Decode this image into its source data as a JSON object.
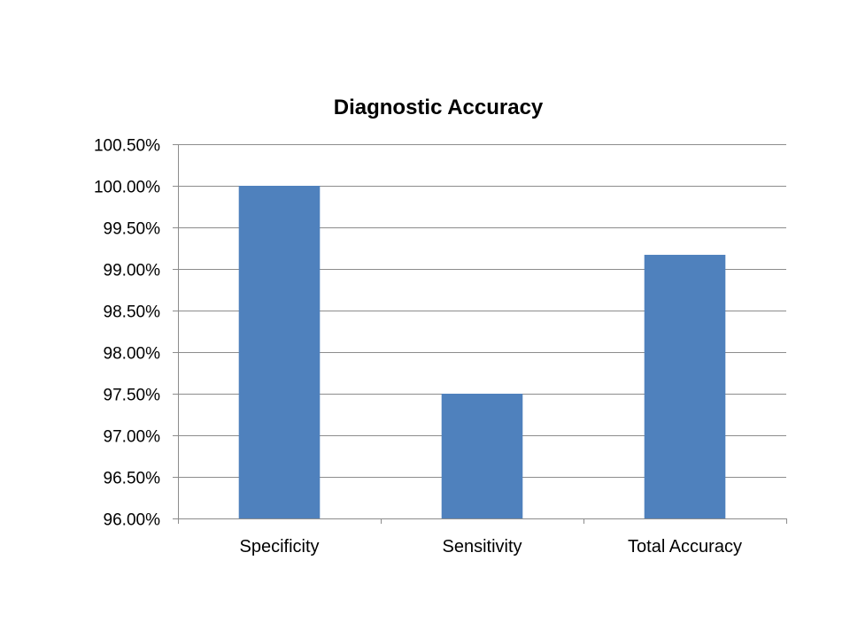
{
  "chart_data": {
    "type": "bar",
    "title": "Diagnostic Accuracy",
    "xlabel": "",
    "ylabel": "",
    "categories": [
      "Specificity",
      "Sensitivity",
      "Total Accuracy"
    ],
    "series": [
      {
        "values": [
          100.0,
          97.5,
          99.17
        ]
      }
    ],
    "ylim": [
      96.0,
      100.5
    ],
    "ytick_step": 0.5,
    "yticks": [
      "100.50%",
      "100.00%",
      "99.50%",
      "99.00%",
      "98.50%",
      "98.00%",
      "97.50%",
      "97.00%",
      "96.50%",
      "96.00%"
    ],
    "grid": true,
    "legend": "none",
    "colors": {
      "bar": "#4F81BD",
      "grid": "#8C8C8C",
      "axis": "#8C8C8C"
    }
  }
}
